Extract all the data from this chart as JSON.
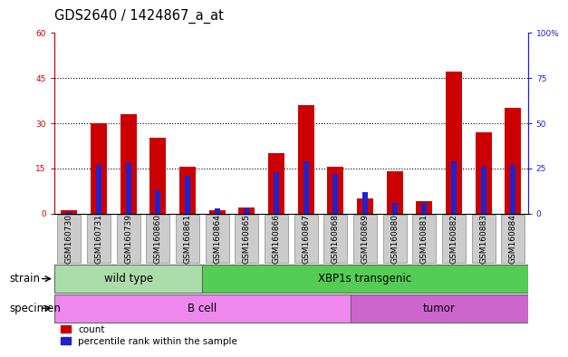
{
  "title": "GDS2640 / 1424867_a_at",
  "samples": [
    "GSM160730",
    "GSM160731",
    "GSM160739",
    "GSM160860",
    "GSM160861",
    "GSM160864",
    "GSM160865",
    "GSM160866",
    "GSM160867",
    "GSM160868",
    "GSM160869",
    "GSM160880",
    "GSM160881",
    "GSM160882",
    "GSM160883",
    "GSM160884"
  ],
  "counts": [
    1,
    30,
    33,
    25,
    15.5,
    1,
    2,
    20,
    36,
    15.5,
    5,
    14,
    4,
    47,
    27,
    35
  ],
  "percentiles": [
    1,
    27,
    28,
    13,
    21,
    3,
    3,
    23,
    29,
    22,
    12,
    6,
    6,
    29,
    26,
    27
  ],
  "count_color": "#cc0000",
  "percentile_color": "#2222cc",
  "ylim_left": [
    0,
    60
  ],
  "ylim_right": [
    0,
    100
  ],
  "yticks_left": [
    0,
    15,
    30,
    45,
    60
  ],
  "yticks_right": [
    0,
    25,
    50,
    75,
    100
  ],
  "ytick_labels_left": [
    "0",
    "15",
    "30",
    "45",
    "60"
  ],
  "ytick_labels_right": [
    "0",
    "25",
    "50",
    "75",
    "100%"
  ],
  "strain_groups": [
    {
      "label": "wild type",
      "start": 0,
      "end": 5,
      "color": "#aaddaa"
    },
    {
      "label": "XBP1s transgenic",
      "start": 5,
      "end": 16,
      "color": "#55cc55"
    }
  ],
  "specimen_groups": [
    {
      "label": "B cell",
      "start": 0,
      "end": 10,
      "color": "#ee88ee"
    },
    {
      "label": "tumor",
      "start": 10,
      "end": 16,
      "color": "#cc66cc"
    }
  ],
  "strain_label": "strain",
  "specimen_label": "specimen",
  "legend_count": "count",
  "legend_percentile": "percentile rank within the sample",
  "bar_width": 0.55,
  "pct_bar_width": 0.18,
  "bg_color": "#ffffff",
  "tick_fontsize": 6.5,
  "label_fontsize": 8.5,
  "title_fontsize": 10.5
}
